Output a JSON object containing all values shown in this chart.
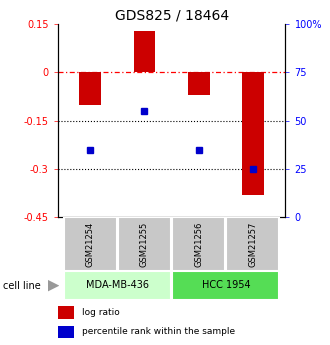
{
  "title": "GDS825 / 18464",
  "samples": [
    "GSM21254",
    "GSM21255",
    "GSM21256",
    "GSM21257"
  ],
  "log_ratios": [
    -0.1,
    0.13,
    -0.07,
    -0.38
  ],
  "percentile_ranks": [
    35,
    55,
    35,
    25
  ],
  "ylim_left": [
    -0.45,
    0.15
  ],
  "ylim_right": [
    0,
    100
  ],
  "yticks_left": [
    0.15,
    0,
    -0.15,
    -0.3,
    -0.45
  ],
  "yticks_right": [
    100,
    75,
    50,
    25,
    0
  ],
  "hline_0": 0,
  "hline_neg015": -0.15,
  "hline_neg03": -0.3,
  "bar_color": "#cc0000",
  "dot_color": "#0000cc",
  "bar_width": 0.4,
  "groups": [
    {
      "label": "MDA-MB-436",
      "samples": [
        0,
        1
      ],
      "color": "#ccffcc"
    },
    {
      "label": "HCC 1954",
      "samples": [
        2,
        3
      ],
      "color": "#55dd55"
    }
  ],
  "gsm_box_color": "#c8c8c8",
  "cell_line_label": "cell line",
  "legend_items": [
    {
      "color": "#cc0000",
      "label": "log ratio"
    },
    {
      "color": "#0000cc",
      "label": "percentile rank within the sample"
    }
  ],
  "title_fontsize": 10,
  "tick_fontsize": 7,
  "background_color": "#ffffff"
}
